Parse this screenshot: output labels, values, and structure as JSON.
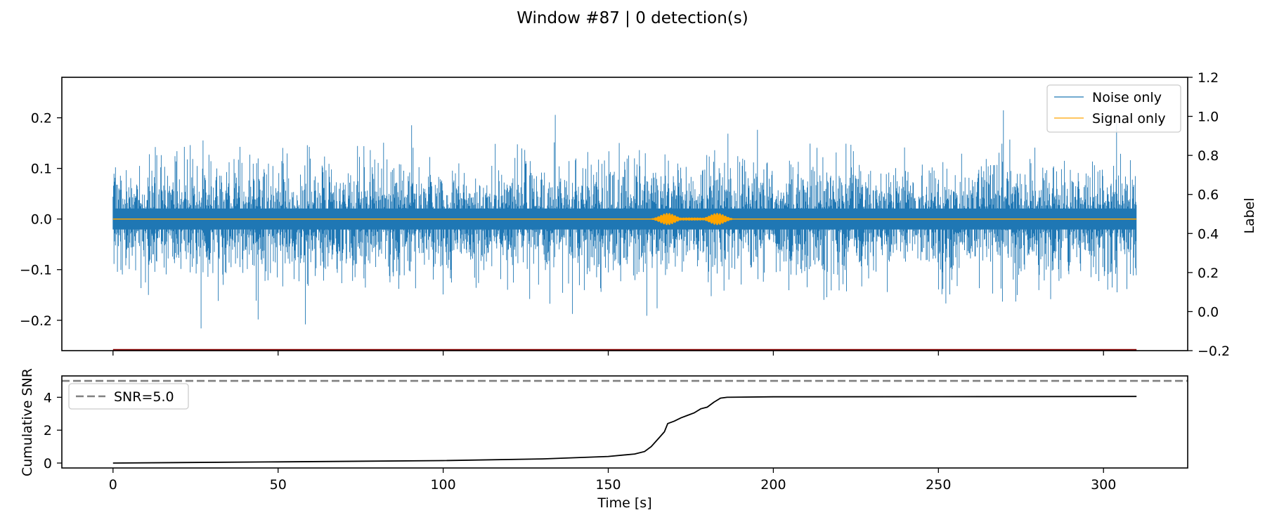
{
  "title": "Window #87 | 0 detection(s)",
  "chart_data": [
    {
      "type": "line",
      "panel": "top",
      "xlim": [
        -15.5,
        325.5
      ],
      "ylim": [
        -0.26,
        0.28
      ],
      "y_ticks": [
        -0.2,
        -0.1,
        0.0,
        0.1,
        0.2
      ],
      "y_tick_labels": [
        "−0.2",
        "−0.1",
        "0.0",
        "0.1",
        "0.2"
      ],
      "x_ticks": [
        0,
        50,
        100,
        150,
        200,
        250,
        300
      ],
      "right_axis": {
        "label": "Label",
        "ylim": [
          -0.2,
          1.2
        ],
        "ticks": [
          -0.2,
          0.0,
          0.2,
          0.4,
          0.6,
          0.8,
          1.0,
          1.2
        ],
        "tick_labels": [
          "−0.2",
          "0.0",
          "0.2",
          "0.4",
          "0.6",
          "0.8",
          "1.0",
          "1.2"
        ],
        "series": [
          {
            "name": "label",
            "color": "#8b0000",
            "x": [
              0,
              310
            ],
            "values": [
              -0.2,
              -0.2
            ]
          }
        ]
      },
      "series": [
        {
          "name": "Noise only",
          "color": "#1f77b4",
          "x_range": [
            0,
            310
          ],
          "typical_amplitude": 0.13,
          "peak_amplitude": 0.25
        },
        {
          "name": "Signal only",
          "color": "#ffa500",
          "x_range": [
            0,
            310
          ],
          "burst": {
            "x_range": [
              158,
              190
            ],
            "peak_amplitude": 0.012,
            "peaks_at": [
              168,
              183
            ]
          }
        }
      ],
      "legend": {
        "placement": "top-right",
        "entries": [
          "Noise only",
          "Signal only"
        ]
      },
      "grid": false
    },
    {
      "type": "line",
      "panel": "bottom",
      "xlabel": "Time [s]",
      "ylabel": "Cumulative SNR",
      "xlim": [
        -15.5,
        325.5
      ],
      "ylim": [
        -0.3,
        5.3
      ],
      "x_ticks": [
        0,
        50,
        100,
        150,
        200,
        250,
        300
      ],
      "x_tick_labels": [
        "0",
        "50",
        "100",
        "150",
        "200",
        "250",
        "300"
      ],
      "y_ticks": [
        0,
        2,
        4
      ],
      "y_tick_labels": [
        "0",
        "2",
        "4"
      ],
      "series": [
        {
          "name": "cumulative snr",
          "color": "#000000",
          "x": [
            0,
            50,
            100,
            130,
            150,
            158,
            161,
            163,
            165,
            167,
            168,
            170,
            172,
            174,
            176,
            178,
            180,
            182,
            184,
            186,
            200,
            250,
            310
          ],
          "values": [
            0.0,
            0.07,
            0.15,
            0.25,
            0.4,
            0.55,
            0.7,
            1.0,
            1.45,
            1.9,
            2.4,
            2.55,
            2.75,
            2.9,
            3.05,
            3.3,
            3.4,
            3.7,
            3.95,
            4.0,
            4.03,
            4.04,
            4.05
          ]
        },
        {
          "name": "SNR=5.0",
          "color": "#808080",
          "dashed": true,
          "values": [
            5.0
          ]
        }
      ],
      "legend": {
        "placement": "upper-left",
        "entries": [
          "SNR=5.0"
        ]
      },
      "grid": false
    }
  ]
}
